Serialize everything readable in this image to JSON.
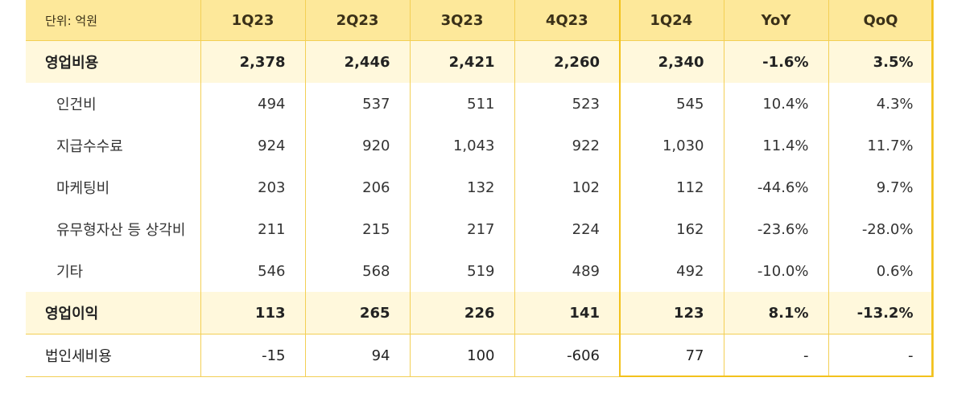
{
  "unit_label": "단위: 억원",
  "columns": [
    "1Q23",
    "2Q23",
    "3Q23",
    "4Q23",
    "1Q24",
    "YoY",
    "QoQ"
  ],
  "rows": [
    {
      "label": "영업비용",
      "type": "hl",
      "values": [
        "2,378",
        "2,446",
        "2,421",
        "2,260",
        "2,340",
        "-1.6%",
        "3.5%"
      ]
    },
    {
      "label": "인건비",
      "type": "sub",
      "values": [
        "494",
        "537",
        "511",
        "523",
        "545",
        "10.4%",
        "4.3%"
      ]
    },
    {
      "label": "지급수수료",
      "type": "sub",
      "values": [
        "924",
        "920",
        "1,043",
        "922",
        "1,030",
        "11.4%",
        "11.7%"
      ]
    },
    {
      "label": "마케팅비",
      "type": "sub",
      "values": [
        "203",
        "206",
        "132",
        "102",
        "112",
        "-44.6%",
        "9.7%"
      ]
    },
    {
      "label": "유무형자산 등 상각비",
      "type": "sub",
      "values": [
        "211",
        "215",
        "217",
        "224",
        "162",
        "-23.6%",
        "-28.0%"
      ]
    },
    {
      "label": "기타",
      "type": "sub",
      "values": [
        "546",
        "568",
        "519",
        "489",
        "492",
        "-10.0%",
        "0.6%"
      ]
    },
    {
      "label": "영업이익",
      "type": "hl",
      "values": [
        "113",
        "265",
        "226",
        "141",
        "123",
        "8.1%",
        "-13.2%"
      ]
    },
    {
      "label": "법인세비용",
      "type": "last",
      "values": [
        "-15",
        "94",
        "100",
        "-606",
        "77",
        "-",
        "-"
      ]
    }
  ]
}
